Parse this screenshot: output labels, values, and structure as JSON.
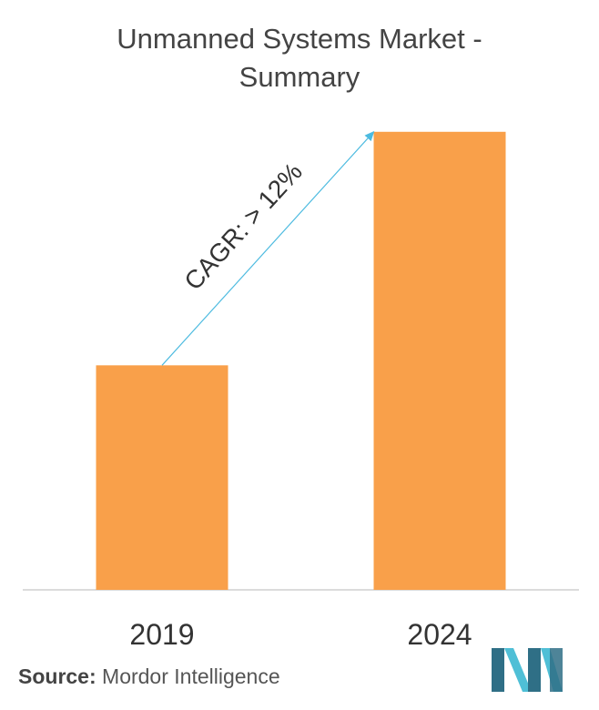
{
  "chart_data": {
    "type": "bar",
    "title_line1": "Unmanned Systems Market -",
    "title_line2": "Summary",
    "categories": [
      "2019",
      "2024"
    ],
    "values": [
      1.0,
      2.04
    ],
    "ylim": [
      0,
      2.1
    ],
    "grid": false,
    "bar_color": "#f9a04a",
    "annotation": {
      "text": "CAGR: > 12%",
      "arrow_color": "#4dbbe0"
    }
  },
  "footer": {
    "source_label": "Source:",
    "source_text": "Mordor Intelligence"
  },
  "logo": {
    "icon": "mordor-intelligence-logo-icon",
    "colors": [
      "#2f6f86",
      "#4fbfd6"
    ]
  }
}
